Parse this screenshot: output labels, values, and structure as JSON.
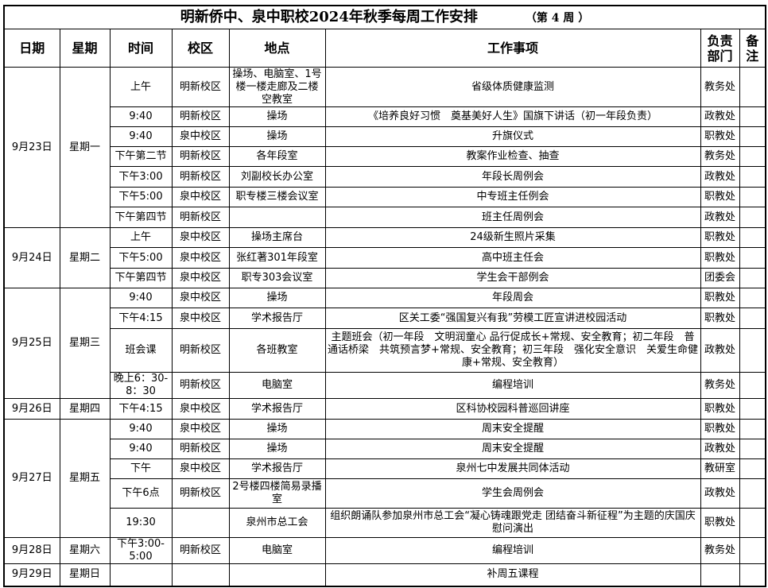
{
  "title": "明新侨中、泉中职校2024年秋季每周工作安排",
  "week_label": "（第 4 周 ）",
  "headers": [
    "日期",
    "星期",
    "时间",
    "校区",
    "地点",
    "工作事项",
    "负责部门",
    "备注"
  ],
  "days": [
    {
      "date": "9月23日",
      "weekday": "星期一",
      "rows": [
        {
          "time": "上午",
          "campus": "明新校区",
          "place": "操场、电脑室、1号楼一楼走廊及二楼空教室",
          "task": "省级体质健康监测",
          "dept": "教务处",
          "note": ""
        },
        {
          "time": "9:40",
          "campus": "明新校区",
          "place": "操场",
          "task": "《培养良好习惯　奠基美好人生》国旗下讲话（初一年段负责）",
          "dept": "政教处",
          "note": ""
        },
        {
          "time": "9:40",
          "campus": "泉中校区",
          "place": "操场",
          "task": "升旗仪式",
          "dept": "职教处",
          "note": ""
        },
        {
          "time": "下午第二节",
          "campus": "明新校区",
          "place": "各年段室",
          "task": "教案作业检查、抽查",
          "dept": "教务处",
          "note": ""
        },
        {
          "time": "下午3:00",
          "campus": "明新校区",
          "place": "刘副校长办公室",
          "task": "年段长周例会",
          "dept": "政教处",
          "note": ""
        },
        {
          "time": "下午5:00",
          "campus": "泉中校区",
          "place": "职专楼三楼会议室",
          "task": "中专班主任例会",
          "dept": "职教处",
          "note": ""
        },
        {
          "time": "下午第四节",
          "campus": "明新校区",
          "place": "",
          "task": "班主任周例会",
          "dept": "政教处",
          "note": ""
        }
      ]
    },
    {
      "date": "9月24日",
      "weekday": "星期二",
      "rows": [
        {
          "time": "上午",
          "campus": "泉中校区",
          "place": "操场主席台",
          "task": "24级新生照片采集",
          "dept": "职教处",
          "note": ""
        },
        {
          "time": "下午5:00",
          "campus": "泉中校区",
          "place": "张红著301年段室",
          "task": "高中班主任会",
          "dept": "职教处",
          "note": ""
        },
        {
          "time": "下午第四节",
          "campus": "泉中校区",
          "place": "职专303会议室",
          "task": "学生会干部例会",
          "dept": "团委会",
          "note": ""
        }
      ]
    },
    {
      "date": "9月25日",
      "weekday": "星期三",
      "rows": [
        {
          "time": "9:40",
          "campus": "泉中校区",
          "place": "操场",
          "task": "年段周会",
          "dept": "职教处",
          "note": ""
        },
        {
          "time": "下午4:15",
          "campus": "泉中校区",
          "place": "学术报告厅",
          "task": "区关工委“强国复兴有我”劳模工匠宣讲进校园活动",
          "dept": "职教处",
          "note": ""
        },
        {
          "time": "班会课",
          "campus": "明新校区",
          "place": "各班教室",
          "task": "主题班会（初一年段　文明润童心 品行促成长+常规、安全教育；初二年段　普通话桥梁　共筑预言梦+常规、安全教育；初三年段　强化安全意识　关爱生命健康+常规、安全教育）",
          "dept": "政教处",
          "note": ""
        },
        {
          "time": "晚上6：30-8：30",
          "campus": "明新校区",
          "place": "电脑室",
          "task": "编程培训",
          "dept": "教务处",
          "note": ""
        }
      ]
    },
    {
      "date": "9月26日",
      "weekday": "星期四",
      "rows": [
        {
          "time": "下午4:15",
          "campus": "泉中校区",
          "place": "学术报告厅",
          "task": "区科协校园科普巡回讲座",
          "dept": "职教处",
          "note": ""
        }
      ]
    },
    {
      "date": "9月27日",
      "weekday": "星期五",
      "rows": [
        {
          "time": "9:40",
          "campus": "泉中校区",
          "place": "操场",
          "task": "周末安全提醒",
          "dept": "职教处",
          "note": ""
        },
        {
          "time": "9:40",
          "campus": "明新校区",
          "place": "操场",
          "task": "周末安全提醒",
          "dept": "政教处",
          "note": ""
        },
        {
          "time": "下午",
          "campus": "泉中校区",
          "place": "学术报告厅",
          "task": "泉州七中发展共同体活动",
          "dept": "教研室",
          "note": ""
        },
        {
          "time": "下午6点",
          "campus": "明新校区",
          "place": "2号楼四楼简易录播室",
          "task": "学生会周例会",
          "dept": "政教处",
          "note": ""
        },
        {
          "time": "19:30",
          "campus": "",
          "place": "泉州市总工会",
          "task": "组织朗诵队参加泉州市总工会“凝心铸魂跟党走 团结奋斗新征程”为主题的庆国庆慰问演出",
          "dept": "职教处",
          "note": ""
        }
      ]
    },
    {
      "date": "9月28日",
      "weekday": "星期六",
      "rows": [
        {
          "time": "下午3:00-5:00",
          "campus": "明新校区",
          "place": "电脑室",
          "task": "编程培训",
          "dept": "教务处",
          "note": ""
        }
      ]
    },
    {
      "date": "9月29日",
      "weekday": "星期日",
      "rows": [
        {
          "time": "",
          "campus": "",
          "place": "",
          "task": "补周五课程",
          "dept": "",
          "note": ""
        }
      ]
    }
  ]
}
